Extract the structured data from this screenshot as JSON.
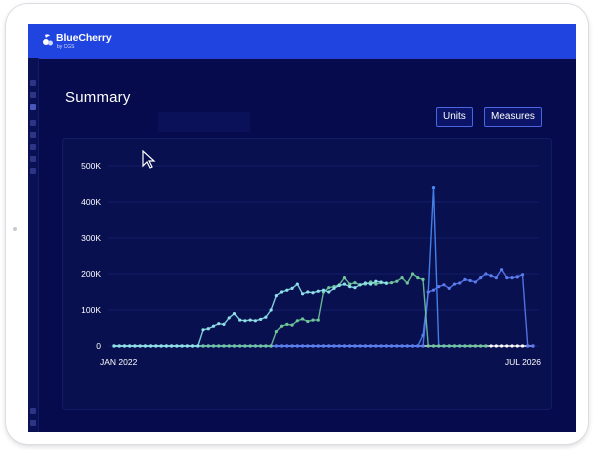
{
  "header": {
    "brand": "BlueCherry",
    "brand_sub": "by CGS"
  },
  "page": {
    "title": "Summary"
  },
  "toolbar": {
    "units_label": "Units",
    "measures_label": "Measures"
  },
  "sidebar": {
    "icons": [
      "home-icon",
      "grid-icon",
      "chart-icon",
      "box-icon",
      "document-icon",
      "tag-icon",
      "settings-icon",
      "cart-icon"
    ]
  },
  "colors": {
    "topbar": "#1f44e0",
    "background": "#060b4d",
    "series": [
      "#8fe0e8",
      "#6fc79a",
      "#5b7bf0",
      "#4a8cf7",
      "#ffffff"
    ]
  },
  "chart_data": {
    "type": "line",
    "title": "",
    "xlabel": "",
    "ylabel": "",
    "x_start": "JAN 2022",
    "x_end": "JUL 2026",
    "x_tick_labels": [
      "JAN 2022",
      "JUL 2026"
    ],
    "y_tick_labels": [
      "0",
      "100K",
      "200K",
      "300K",
      "400K",
      "500K"
    ],
    "ylim": [
      0,
      500000
    ],
    "grid": true,
    "legend": "none",
    "series": [
      {
        "color": "#8fe0e8",
        "values": [
          0,
          0,
          0,
          0,
          0,
          0,
          0,
          0,
          0,
          0,
          0,
          0,
          0,
          0,
          0,
          0,
          0,
          45000,
          48000,
          55000,
          62000,
          60000,
          78000,
          90000,
          72000,
          70000,
          72000,
          70000,
          74000,
          80000,
          100000,
          140000,
          150000,
          155000,
          160000,
          172000,
          145000,
          150000,
          148000,
          152000,
          155000,
          150000,
          160000,
          168000,
          172000,
          165000,
          162000,
          170000,
          175000,
          172000,
          180000,
          178000,
          175000
        ]
      },
      {
        "color": "#6fc79a",
        "values": [
          0,
          0,
          0,
          0,
          0,
          0,
          0,
          0,
          0,
          0,
          0,
          0,
          0,
          0,
          0,
          0,
          0,
          0,
          0,
          0,
          0,
          0,
          0,
          0,
          0,
          0,
          0,
          0,
          0,
          0,
          0,
          40000,
          55000,
          60000,
          58000,
          70000,
          75000,
          68000,
          72000,
          72000,
          150000,
          162000,
          165000,
          170000,
          190000,
          172000,
          176000,
          170000,
          172000,
          178000,
          172000,
          176000,
          174000,
          176000,
          180000,
          190000,
          175000,
          200000,
          190000,
          185000,
          0,
          0,
          0,
          0,
          0,
          0,
          0,
          0,
          0,
          0,
          0,
          0
        ]
      },
      {
        "color": "#5b7bf0",
        "values": [
          0,
          0,
          0,
          0,
          0,
          0,
          0,
          0,
          0,
          0,
          0,
          0,
          0,
          0,
          0,
          0,
          0,
          0,
          0,
          0,
          0,
          0,
          0,
          0,
          0,
          0,
          0,
          0,
          0,
          0,
          0,
          0,
          0,
          0,
          0,
          0,
          0,
          0,
          0,
          0,
          0,
          0,
          0,
          0,
          0,
          0,
          0,
          0,
          0,
          0,
          0,
          0,
          0,
          0,
          0,
          0,
          0,
          0,
          0,
          0,
          150000,
          155000,
          165000,
          170000,
          160000,
          172000,
          175000,
          185000,
          182000,
          178000,
          190000,
          200000,
          195000,
          190000,
          212000,
          190000,
          190000,
          192000,
          198000,
          0,
          0
        ]
      },
      {
        "color": "#4a8cf7",
        "values": [
          0,
          0,
          0,
          0,
          0,
          0,
          0,
          0,
          0,
          0,
          0,
          0,
          0,
          0,
          0,
          0,
          0,
          0,
          0,
          0,
          0,
          0,
          0,
          0,
          0,
          0,
          0,
          0,
          0,
          0,
          0,
          0,
          0,
          0,
          0,
          0,
          0,
          0,
          0,
          0,
          0,
          0,
          0,
          0,
          0,
          0,
          0,
          0,
          0,
          0,
          0,
          0,
          0,
          0,
          0,
          0,
          0,
          0,
          0,
          30000,
          150000,
          440000,
          0,
          0,
          0,
          0,
          0,
          0
        ]
      },
      {
        "color": "#ffffff",
        "values": [
          0,
          0,
          0,
          0,
          0,
          0,
          0,
          0,
          0,
          0,
          0,
          0,
          0,
          0,
          0,
          0,
          0,
          0,
          0,
          0,
          0,
          0,
          0,
          0,
          0,
          0,
          0,
          0,
          0,
          0,
          0,
          0,
          0,
          0,
          0,
          0,
          0,
          0,
          0,
          0,
          0,
          0,
          0,
          0,
          0,
          0,
          0,
          0,
          0,
          0,
          0,
          0,
          0,
          0,
          0,
          0,
          0,
          0,
          0,
          0,
          0,
          0,
          0,
          0,
          0,
          0,
          0,
          0,
          0,
          0,
          0,
          0,
          0,
          0,
          0,
          0,
          0,
          0,
          0,
          0,
          0
        ]
      }
    ]
  }
}
